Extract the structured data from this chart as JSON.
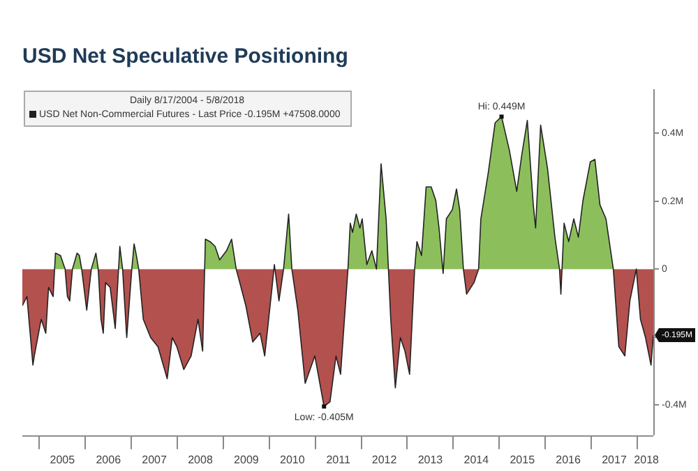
{
  "chart_data": {
    "type": "area",
    "title": "USD Net Speculative Positioning",
    "legend_title": "Daily 8/17/2004 - 5/8/2018",
    "legend": "top left",
    "grid": false,
    "marker": "none",
    "xlim": [
      2004.63,
      2018.35
    ],
    "ylim": [
      -0.49,
      0.53
    ],
    "xticks": [
      {
        "value": 2005,
        "label": null
      },
      {
        "value": 2005.5,
        "label": "2005"
      },
      {
        "value": 2006,
        "label": null
      },
      {
        "value": 2006.5,
        "label": "2006"
      },
      {
        "value": 2007,
        "label": null
      },
      {
        "value": 2007.5,
        "label": "2007"
      },
      {
        "value": 2008,
        "label": null
      },
      {
        "value": 2008.5,
        "label": "2008"
      },
      {
        "value": 2009,
        "label": null
      },
      {
        "value": 2009.5,
        "label": "2009"
      },
      {
        "value": 2010,
        "label": null
      },
      {
        "value": 2010.5,
        "label": "2010"
      },
      {
        "value": 2011,
        "label": null
      },
      {
        "value": 2011.5,
        "label": "2011"
      },
      {
        "value": 2012,
        "label": null
      },
      {
        "value": 2012.5,
        "label": "2012"
      },
      {
        "value": 2013,
        "label": null
      },
      {
        "value": 2013.5,
        "label": "2013"
      },
      {
        "value": 2014,
        "label": null
      },
      {
        "value": 2014.5,
        "label": "2014"
      },
      {
        "value": 2015,
        "label": null
      },
      {
        "value": 2015.5,
        "label": "2015"
      },
      {
        "value": 2016,
        "label": null
      },
      {
        "value": 2016.5,
        "label": "2016"
      },
      {
        "value": 2017,
        "label": null
      },
      {
        "value": 2017.5,
        "label": "2017"
      },
      {
        "value": 2018,
        "label": null
      },
      {
        "value": 2018.2,
        "label": "2018"
      }
    ],
    "yticks": [
      {
        "value": -0.4,
        "label": "-0.4M"
      },
      {
        "value": -0.2,
        "label": null
      },
      {
        "value": 0,
        "label": "0"
      },
      {
        "value": 0.2,
        "label": "0.2M"
      },
      {
        "value": 0.4,
        "label": "0.4M"
      }
    ],
    "annotations": [
      {
        "text": "Hi: 0.449M",
        "x": 2015.05,
        "y": 0.449
      },
      {
        "text": "Low: -0.405M",
        "x": 2011.19,
        "y": -0.405
      },
      {
        "text": "-0.195M",
        "x": 2018.35,
        "y": -0.195
      }
    ],
    "series": [
      {
        "name": "USD Net Non-Commercial Futures - Last Price -0.195M +47508.0000",
        "color": "#222222",
        "colors": [
          "#b3514f",
          "#b3514f",
          "#b3514f",
          "#b3514f",
          "#b3514f",
          "#b3514f",
          "#b3514f",
          "#b3514f",
          "#8cbf5b",
          "#8cbf5b",
          "#8cbf5b",
          "#b3514f",
          "#b3514f",
          "#b3514f",
          "#8cbf5b",
          "#8cbf5b",
          "#8cbf5b",
          "#b3514f",
          "#b3514f",
          "#8cbf5b",
          "#8cbf5b",
          "#b3514f",
          "#b3514f",
          "#b3514f",
          "#b3514f",
          "#b3514f",
          "#8cbf5b",
          "#8cbf5b",
          "#b3514f",
          "#b3514f",
          "#8cbf5b",
          "#8cbf5b",
          "#8cbf5b",
          "#b3514f",
          "#b3514f",
          "#b3514f",
          "#b3514f",
          "#b3514f",
          "#b3514f",
          "#b3514f",
          "#b3514f",
          "#b3514f",
          "#b3514f",
          "#8cbf5b",
          "#8cbf5b",
          "#8cbf5b",
          "#8cbf5b",
          "#8cbf5b",
          "#8cbf5b",
          "#8cbf5b",
          "#b3514f",
          "#b3514f",
          "#b3514f",
          "#b3514f",
          "#b3514f",
          "#8cbf5b",
          "#b3514f",
          "#b3514f",
          "#8cbf5b",
          "#8cbf5b",
          "#b3514f",
          "#b3514f",
          "#b3514f",
          "#b3514f",
          "#b3514f",
          "#b3514f",
          "#b3514f",
          "#b3514f",
          "#8cbf5b",
          "#8cbf5b",
          "#8cbf5b",
          "#8cbf5b",
          "#8cbf5b",
          "#8cbf5b",
          "#8cbf5b",
          "#8cbf5b",
          "#8cbf5b",
          "#8cbf5b",
          "#8cbf5b",
          "#b3514f",
          "#b3514f",
          "#b3514f",
          "#b3514f",
          "#b3514f",
          "#b3514f",
          "#8cbf5b",
          "#8cbf5b",
          "#8cbf5b",
          "#8cbf5b",
          "#8cbf5b",
          "#8cbf5b",
          "#b3514f",
          "#8cbf5b",
          "#8cbf5b",
          "#8cbf5b",
          "#8cbf5b",
          "#8cbf5b",
          "#b3514f",
          "#b3514f",
          "#b3514f",
          "#8cbf5b",
          "#8cbf5b",
          "#8cbf5b",
          "#8cbf5b",
          "#8cbf5b",
          "#8cbf5b",
          "#8cbf5b",
          "#8cbf5b",
          "#8cbf5b",
          "#8cbf5b",
          "#8cbf5b",
          "#8cbf5b",
          "#8cbf5b",
          "#8cbf5b",
          "#b3514f",
          "#8cbf5b",
          "#8cbf5b",
          "#8cbf5b",
          "#8cbf5b",
          "#8cbf5b",
          "#8cbf5b",
          "#8cbf5b",
          "#8cbf5b",
          "#8cbf5b",
          "#8cbf5b",
          "#b3514f",
          "#b3514f",
          "#b3514f",
          "#b3514f",
          "#b3514f",
          "#b3514f",
          "#b3514f",
          "#b3514f"
        ],
        "x": [
          2004.63,
          2004.73,
          2004.86,
          2004.89,
          2005.04,
          2005.14,
          2005.2,
          2005.3,
          2005.35,
          2005.46,
          2005.56,
          2005.61,
          2005.66,
          2005.72,
          2005.82,
          2005.87,
          2005.92,
          2006.03,
          2006.13,
          2006.23,
          2006.28,
          2006.34,
          2006.39,
          2006.44,
          2006.54,
          2006.65,
          2006.75,
          2006.81,
          2006.9,
          2007.01,
          2007.06,
          2007.11,
          2007.16,
          2007.26,
          2007.42,
          2007.58,
          2007.78,
          2007.89,
          2007.99,
          2008.14,
          2008.3,
          2008.45,
          2008.55,
          2008.61,
          2008.71,
          2008.82,
          2008.92,
          2009.07,
          2009.18,
          2009.28,
          2009.49,
          2009.64,
          2009.8,
          2009.9,
          2010.06,
          2010.11,
          2010.21,
          2010.31,
          2010.42,
          2010.49,
          2010.62,
          2010.78,
          2010.99,
          2011.19,
          2011.32,
          2011.45,
          2011.55,
          2011.71,
          2011.76,
          2011.81,
          2011.89,
          2011.97,
          2012.02,
          2012.12,
          2012.23,
          2012.33,
          2012.43,
          2012.54,
          2012.59,
          2012.64,
          2012.74,
          2012.85,
          2012.95,
          2013.05,
          2013.16,
          2013.21,
          2013.31,
          2013.41,
          2013.52,
          2013.62,
          2013.69,
          2013.78,
          2013.85,
          2013.98,
          2014.07,
          2014.14,
          2014.22,
          2014.29,
          2014.45,
          2014.55,
          2014.6,
          2014.76,
          2014.91,
          2015.05,
          2015.22,
          2015.38,
          2015.49,
          2015.61,
          2015.74,
          2015.79,
          2015.9,
          2016.05,
          2016.21,
          2016.31,
          2016.34,
          2016.41,
          2016.51,
          2016.62,
          2016.72,
          2016.82,
          2016.98,
          2017.08,
          2017.19,
          2017.32,
          2017.48,
          2017.6,
          2017.73,
          2017.84,
          2017.98,
          2018.07,
          2018.18,
          2018.3,
          2018.35
        ],
        "values": [
          -0.108,
          -0.081,
          -0.283,
          -0.256,
          -0.148,
          -0.189,
          -0.054,
          -0.081,
          0.047,
          0.04,
          0,
          -0.081,
          -0.094,
          0,
          0.047,
          0.04,
          0,
          -0.121,
          0,
          0.047,
          0,
          -0.148,
          -0.189,
          -0.04,
          -0.054,
          -0.175,
          0.067,
          0,
          -0.202,
          0,
          0.074,
          0.04,
          0,
          -0.148,
          -0.202,
          -0.229,
          -0.323,
          -0.202,
          -0.229,
          -0.296,
          -0.256,
          -0.148,
          -0.242,
          0.088,
          0.081,
          0.067,
          0.027,
          0.054,
          0.088,
          0,
          -0.108,
          -0.215,
          -0.189,
          -0.256,
          -0.054,
          0.013,
          -0.094,
          0,
          0.162,
          0,
          -0.121,
          -0.337,
          -0.256,
          -0.405,
          -0.391,
          -0.256,
          -0.31,
          0,
          0.135,
          0.108,
          0.162,
          0.121,
          0.148,
          0.013,
          0.054,
          0,
          0.31,
          0.148,
          0,
          -0.148,
          -0.35,
          -0.202,
          -0.242,
          -0.31,
          0,
          0.081,
          0.04,
          0.242,
          0.242,
          0.202,
          0.121,
          -0.013,
          0.148,
          0.175,
          0.236,
          0.175,
          0,
          -0.074,
          -0.04,
          0,
          0.148,
          0.283,
          0.431,
          0.449,
          0.35,
          0.229,
          0.337,
          0.438,
          0.189,
          0.121,
          0.424,
          0.296,
          0.094,
          0,
          -0.074,
          0.135,
          0.081,
          0.148,
          0.094,
          0.202,
          0.316,
          0.323,
          0.189,
          0.148,
          0,
          -0.229,
          -0.256,
          -0.094,
          0,
          -0.148,
          -0.202,
          -0.283,
          -0.195
        ]
      }
    ]
  }
}
